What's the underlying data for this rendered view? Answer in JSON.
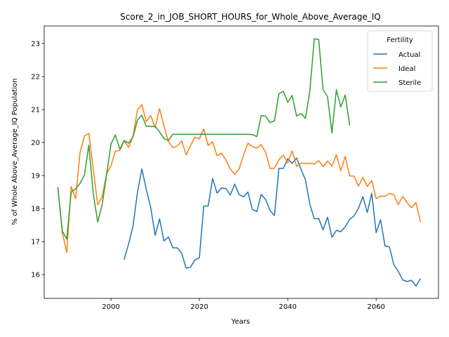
{
  "chart_data": {
    "type": "line",
    "title": "Score_2_in_JOB_SHORT_HOURS_for_Whole_Above_Average_IQ",
    "xlabel": "Years",
    "ylabel": "% of Whole Above_Average_IQ Population",
    "xlim": [
      1984.9,
      2074.1
    ],
    "ylim": [
      15.28,
      23.53
    ],
    "xticks": [
      2000,
      2020,
      2040,
      2060
    ],
    "yticks": [
      16,
      17,
      18,
      19,
      20,
      21,
      22,
      23
    ],
    "grid": false,
    "legend": {
      "title": "Fertility",
      "position": "top-right"
    },
    "series": [
      {
        "name": "Actual",
        "color": "#1f77b4",
        "x": [
          2003,
          2004,
          2005,
          2006,
          2007,
          2008,
          2009,
          2010,
          2011,
          2012,
          2013,
          2014,
          2015,
          2016,
          2017,
          2018,
          2019,
          2020,
          2021,
          2022,
          2023,
          2024,
          2025,
          2026,
          2027,
          2028,
          2029,
          2030,
          2031,
          2032,
          2033,
          2034,
          2035,
          2036,
          2037,
          2038,
          2039,
          2040,
          2041,
          2042,
          2043,
          2044,
          2045,
          2046,
          2047,
          2048,
          2049,
          2050,
          2051,
          2052,
          2053,
          2054,
          2055,
          2056,
          2057,
          2058,
          2059,
          2060,
          2061,
          2062,
          2063,
          2064,
          2065,
          2066,
          2067,
          2068,
          2069,
          2070
        ],
        "values": [
          16.47,
          16.93,
          17.48,
          18.49,
          19.2,
          18.58,
          18.03,
          17.19,
          17.69,
          17.02,
          17.14,
          16.81,
          16.81,
          16.65,
          16.2,
          16.22,
          16.45,
          16.51,
          18.08,
          18.08,
          18.91,
          18.47,
          18.62,
          18.61,
          18.41,
          18.74,
          18.42,
          18.36,
          18.5,
          17.97,
          17.91,
          18.43,
          18.27,
          17.94,
          17.79,
          19.22,
          19.22,
          19.51,
          19.37,
          19.53,
          19.19,
          18.87,
          18.13,
          17.69,
          17.7,
          17.36,
          17.74,
          17.13,
          17.34,
          17.3,
          17.45,
          17.67,
          17.78,
          18.01,
          18.36,
          17.88,
          18.46,
          17.27,
          17.66,
          16.87,
          16.84,
          16.3,
          16.1,
          15.84,
          15.79,
          15.83,
          15.65,
          15.87
        ]
      },
      {
        "name": "Ideal",
        "color": "#ff7f0e",
        "x": [
          1988,
          1989,
          1990,
          1991,
          1992,
          1993,
          1994,
          1995,
          1996,
          1997,
          1998,
          1999,
          2000,
          2001,
          2002,
          2003,
          2004,
          2005,
          2006,
          2007,
          2008,
          2009,
          2010,
          2011,
          2012,
          2013,
          2014,
          2015,
          2016,
          2017,
          2018,
          2019,
          2020,
          2021,
          2022,
          2023,
          2024,
          2025,
          2026,
          2027,
          2028,
          2029,
          2030,
          2031,
          2032,
          2033,
          2034,
          2035,
          2036,
          2037,
          2038,
          2039,
          2040,
          2041,
          2042,
          2043,
          2044,
          2045,
          2046,
          2047,
          2048,
          2049,
          2050,
          2051,
          2052,
          2053,
          2054,
          2055,
          2056,
          2057,
          2058,
          2059,
          2060,
          2061,
          2062,
          2063,
          2064,
          2065,
          2066,
          2067,
          2068,
          2069,
          2070
        ],
        "values": [
          18.63,
          17.27,
          16.67,
          18.67,
          18.3,
          19.69,
          20.2,
          20.28,
          19.19,
          18.11,
          18.35,
          19.04,
          19.3,
          19.74,
          19.76,
          20.05,
          19.85,
          20.2,
          20.99,
          21.15,
          20.63,
          20.82,
          20.45,
          21.03,
          20.5,
          20.03,
          19.85,
          19.89,
          20.05,
          19.63,
          19.9,
          20.16,
          20.11,
          20.41,
          19.91,
          20.02,
          19.6,
          19.68,
          19.47,
          19.2,
          19.04,
          19.2,
          19.62,
          19.98,
          19.88,
          19.83,
          19.94,
          19.7,
          19.22,
          19.22,
          19.48,
          19.62,
          19.38,
          19.75,
          19.28,
          19.38,
          19.36,
          19.38,
          19.35,
          19.45,
          19.27,
          19.44,
          19.29,
          19.63,
          19.14,
          19.58,
          18.99,
          18.98,
          18.68,
          18.95,
          18.67,
          18.85,
          18.3,
          18.38,
          18.37,
          18.46,
          18.42,
          18.12,
          18.37,
          18.18,
          18.03,
          18.18,
          17.61
        ]
      },
      {
        "name": "Sterile",
        "color": "#2ca02c",
        "x": [
          1988,
          1989,
          1990,
          1991,
          1992,
          1993,
          1994,
          1995,
          1996,
          1997,
          1998,
          1999,
          2000,
          2001,
          2002,
          2003,
          2004,
          2005,
          2006,
          2007,
          2008,
          2009,
          2010,
          2011,
          2012,
          2013,
          2014,
          2015,
          2016,
          2017,
          2018,
          2019,
          2020,
          2021,
          2022,
          2023,
          2024,
          2025,
          2026,
          2027,
          2028,
          2029,
          2030,
          2031,
          2032,
          2033,
          2034,
          2035,
          2036,
          2037,
          2038,
          2039,
          2040,
          2041,
          2042,
          2043,
          2044,
          2045,
          2046,
          2047,
          2048,
          2049,
          2050,
          2051,
          2052,
          2053,
          2054
        ],
        "values": [
          18.63,
          17.32,
          17.08,
          18.49,
          18.6,
          18.76,
          19.01,
          19.92,
          18.45,
          17.59,
          18.11,
          19.02,
          19.95,
          20.23,
          19.8,
          20.06,
          19.98,
          20.17,
          20.68,
          20.83,
          20.49,
          20.49,
          20.49,
          20.32,
          20.12,
          20.06,
          20.25,
          20.25,
          20.25,
          20.25,
          20.25,
          20.25,
          20.25,
          20.25,
          20.25,
          20.25,
          20.25,
          20.25,
          20.25,
          20.25,
          20.25,
          20.25,
          20.25,
          20.25,
          20.24,
          20.18,
          20.82,
          20.8,
          20.6,
          20.66,
          21.48,
          21.55,
          21.22,
          21.43,
          20.8,
          20.88,
          20.73,
          21.56,
          23.14,
          23.12,
          21.6,
          21.39,
          20.29,
          21.6,
          21.08,
          21.44,
          20.53
        ]
      }
    ]
  }
}
